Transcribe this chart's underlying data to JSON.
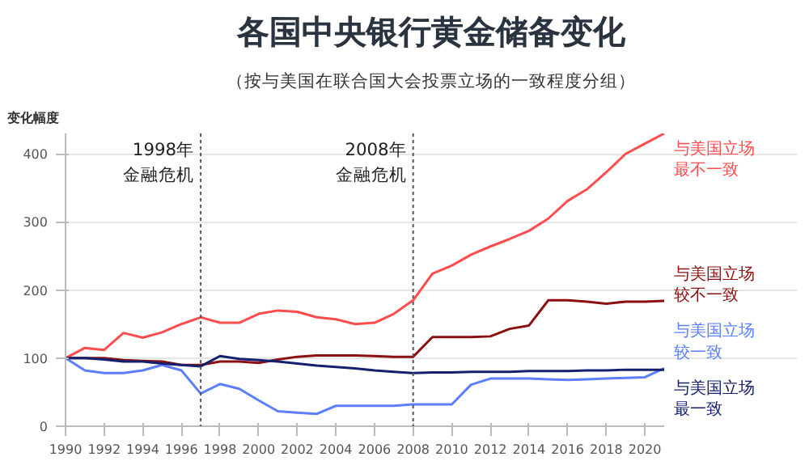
{
  "chart_data": {
    "type": "line",
    "title": "各国中央银行黄金储备变化",
    "subtitle": "（按与美国在联合国大会投票立场的一致程度分组）",
    "ylabel": "变化幅度",
    "x": [
      1990,
      1991,
      1992,
      1993,
      1994,
      1995,
      1996,
      1997,
      1998,
      1999,
      2000,
      2001,
      2002,
      2003,
      2004,
      2005,
      2006,
      2007,
      2008,
      2009,
      2010,
      2011,
      2012,
      2013,
      2014,
      2015,
      2016,
      2017,
      2018,
      2019,
      2020,
      2021
    ],
    "series": [
      {
        "name": "与美国立场最不一致",
        "color": "#ff4d4d",
        "values": [
          100,
          115,
          112,
          137,
          130,
          138,
          150,
          160,
          152,
          152,
          165,
          170,
          168,
          160,
          157,
          150,
          152,
          165,
          185,
          224,
          236,
          252,
          264,
          275,
          287,
          305,
          331,
          348,
          373,
          400,
          415,
          430
        ]
      },
      {
        "name": "与美国立场较不一致",
        "color": "#8b1010",
        "values": [
          100,
          100,
          100,
          97,
          96,
          95,
          90,
          90,
          95,
          95,
          93,
          98,
          102,
          104,
          104,
          104,
          103,
          102,
          102,
          131,
          131,
          131,
          132,
          143,
          148,
          185,
          185,
          183,
          180,
          183,
          183,
          184
        ]
      },
      {
        "name": "与美国立场较一致",
        "color": "#5b7fff",
        "values": [
          100,
          82,
          78,
          78,
          82,
          90,
          82,
          48,
          62,
          55,
          38,
          22,
          20,
          18,
          30,
          30,
          30,
          30,
          32,
          32,
          32,
          61,
          70,
          70,
          70,
          69,
          68,
          69,
          70,
          71,
          72,
          85
        ]
      },
      {
        "name": "与美国立场最一致",
        "color": "#14206e",
        "values": [
          100,
          100,
          98,
          95,
          95,
          92,
          90,
          88,
          103,
          99,
          97,
          95,
          92,
          89,
          87,
          85,
          82,
          80,
          78,
          79,
          79,
          80,
          80,
          80,
          81,
          81,
          81,
          82,
          82,
          83,
          83,
          83
        ]
      }
    ],
    "xlim": [
      1990,
      2021
    ],
    "ylim": [
      0,
      430
    ],
    "xticks": [
      1990,
      1992,
      1994,
      1996,
      1998,
      2000,
      2002,
      2004,
      2006,
      2008,
      2010,
      2012,
      2014,
      2016,
      2018,
      2020
    ],
    "yticks": [
      0,
      100,
      200,
      300,
      400
    ],
    "grid": "y",
    "legend": false,
    "line_style": "solid",
    "marker": "none",
    "ref_lines": [
      {
        "axis": "x",
        "value": 1997,
        "label": "1998年金融危机",
        "color": "#555555",
        "line_style": "dotted"
      },
      {
        "axis": "x",
        "value": 2008,
        "label": "2008年金融危机",
        "color": "#555555",
        "line_style": "dotted"
      }
    ]
  }
}
